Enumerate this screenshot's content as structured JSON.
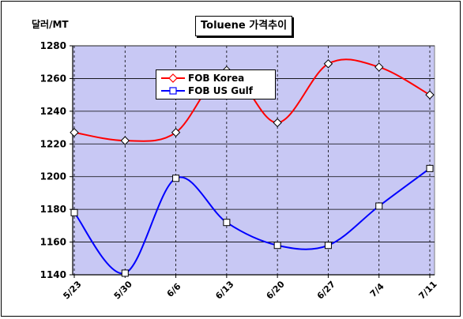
{
  "header": {
    "title": "Toluene 가격추이",
    "unit": "달러/MT"
  },
  "chart_data": {
    "type": "line",
    "title": "Toluene 가격추이",
    "ylabel": "달러/MT",
    "xlabel": "",
    "categories": [
      "5/23",
      "5/30",
      "6/6",
      "6/13",
      "6/20",
      "6/27",
      "7/4",
      "7/11"
    ],
    "ylim": [
      1140,
      1280
    ],
    "yticks": [
      1140,
      1160,
      1180,
      1200,
      1220,
      1240,
      1260,
      1280
    ],
    "grid": "vertical dashed lines at categories, horizontal lines at y ticks",
    "legend_position": "upper-left inside plot",
    "plot_background": "#c8c8f4",
    "series": [
      {
        "name": "FOB Korea",
        "color": "#ff0000",
        "marker": "diamond",
        "values": [
          1227,
          1222,
          1227,
          1265,
          1233,
          1269,
          1267,
          1250
        ]
      },
      {
        "name": "FOB US Gulf",
        "color": "#0000ff",
        "marker": "square",
        "values": [
          1178,
          1141,
          1199,
          1172,
          1158,
          1158,
          1182,
          1205
        ]
      }
    ]
  }
}
